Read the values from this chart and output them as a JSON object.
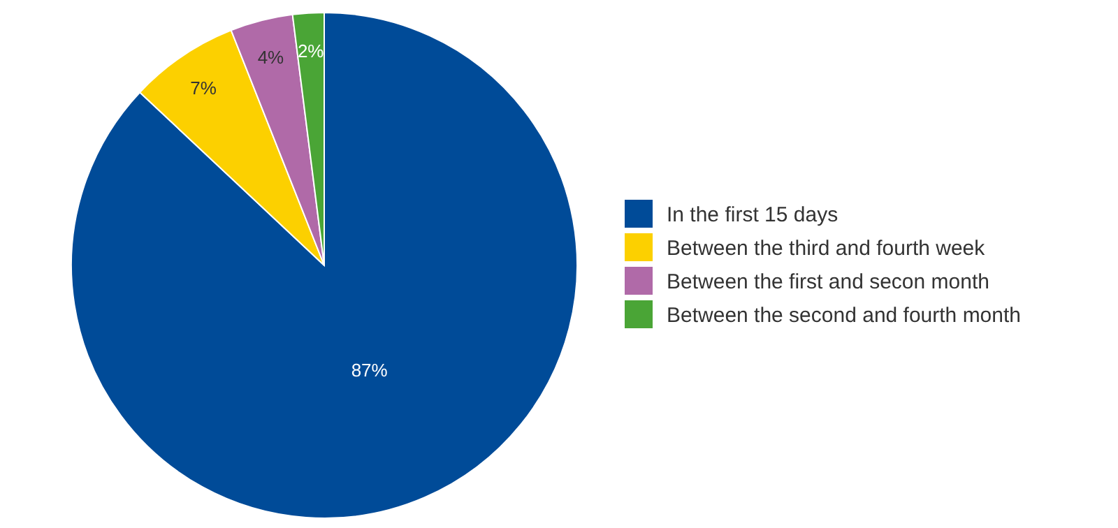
{
  "chart_data": {
    "type": "pie",
    "categories": [
      "In the first 15 days",
      "Between the third and fourth week",
      "Between the first and secon month",
      "Between the second and fourth month"
    ],
    "values": [
      87,
      7,
      4,
      2
    ],
    "colors": [
      "#004b98",
      "#fcd000",
      "#b06aa8",
      "#4aa536"
    ],
    "value_labels": [
      "87%",
      "7%",
      "4%",
      "2%"
    ],
    "legend": "right"
  }
}
